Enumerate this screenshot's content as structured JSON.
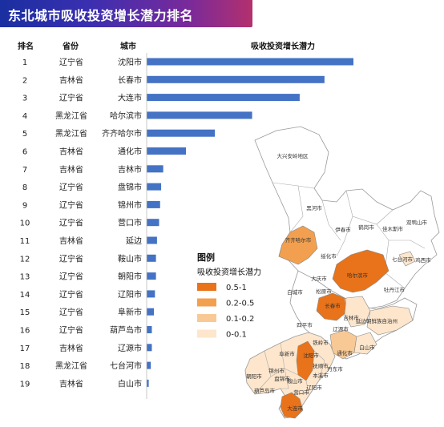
{
  "title": "东北城市吸收投资增长潜力排名",
  "headers": {
    "rank": "排名",
    "province": "省份",
    "city": "城市",
    "value": "吸收投资增长潜力"
  },
  "chart_data": {
    "type": "bar",
    "title": "东北城市吸收投资增长潜力排名",
    "orientation": "horizontal",
    "rows": [
      {
        "rank": "1",
        "province": "辽宁省",
        "city": "沈阳市",
        "value": 1.0
      },
      {
        "rank": "2",
        "province": "吉林省",
        "city": "长春市",
        "value": 0.86
      },
      {
        "rank": "3",
        "province": "辽宁省",
        "city": "大连市",
        "value": 0.74
      },
      {
        "rank": "4",
        "province": "黑龙江省",
        "city": "哈尔滨市",
        "value": 0.51
      },
      {
        "rank": "5",
        "province": "黑龙江省",
        "city": "齐齐哈尔市",
        "value": 0.33
      },
      {
        "rank": "6",
        "province": "吉林省",
        "city": "通化市",
        "value": 0.19
      },
      {
        "rank": "7",
        "province": "吉林省",
        "city": "吉林市",
        "value": 0.08
      },
      {
        "rank": "8",
        "province": "辽宁省",
        "city": "盘锦市",
        "value": 0.07
      },
      {
        "rank": "9",
        "province": "辽宁省",
        "city": "锦州市",
        "value": 0.065
      },
      {
        "rank": "10",
        "province": "辽宁省",
        "city": "营口市",
        "value": 0.06
      },
      {
        "rank": "11",
        "province": "吉林省",
        "city": "延边",
        "value": 0.05
      },
      {
        "rank": "12",
        "province": "辽宁省",
        "city": "鞍山市",
        "value": 0.045
      },
      {
        "rank": "13",
        "province": "辽宁省",
        "city": "朝阳市",
        "value": 0.045
      },
      {
        "rank": "14",
        "province": "辽宁省",
        "city": "辽阳市",
        "value": 0.04
      },
      {
        "rank": "15",
        "province": "辽宁省",
        "city": "阜新市",
        "value": 0.035
      },
      {
        "rank": "16",
        "province": "辽宁省",
        "city": "葫芦岛市",
        "value": 0.025
      },
      {
        "rank": "17",
        "province": "吉林省",
        "city": "辽源市",
        "value": 0.025
      },
      {
        "rank": "18",
        "province": "黑龙江省",
        "city": "七台河市",
        "value": 0.02
      },
      {
        "rank": "19",
        "province": "吉林省",
        "city": "白山市",
        "value": 0.01
      }
    ],
    "bar_color": "#4472c4"
  },
  "map": {
    "legend_title": "图例",
    "legend_subtitle": "吸收投资增长潜力",
    "legend": [
      {
        "label": "0.5-1",
        "color": "#e8731a"
      },
      {
        "label": "0.2-0.5",
        "color": "#f2a04f"
      },
      {
        "label": "0.1-0.2",
        "color": "#f8c995"
      },
      {
        "label": "0-0.1",
        "color": "#fde6cc"
      }
    ],
    "labels": [
      "大兴安岭地区",
      "黑河市",
      "伊春市",
      "鹤岗市",
      "佳木斯市",
      "双鸭山市",
      "鸡西市",
      "齐齐哈尔市",
      "绥化市",
      "七台河市",
      "哈尔滨市",
      "牡丹江市",
      "大庆市",
      "白城市",
      "松原市",
      "长春市",
      "吉林市",
      "延边朝鲜族自治州",
      "四平市",
      "辽源市",
      "通化市",
      "白山市",
      "铁岭市",
      "阜新市",
      "沈阳市",
      "抚顺市",
      "本溪市",
      "丹东市",
      "朝阳市",
      "锦州市",
      "盘锦市",
      "鞍山市",
      "辽阳市",
      "营口市",
      "葫芦岛市",
      "大连市"
    ]
  }
}
